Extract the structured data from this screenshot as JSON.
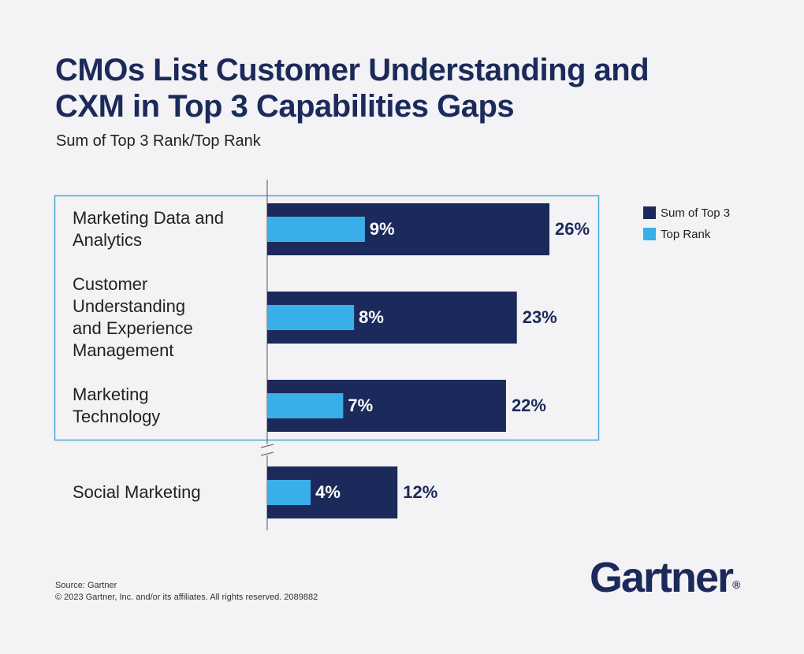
{
  "chart_data": {
    "type": "bar",
    "orientation": "horizontal",
    "title": "CMOs List Customer Understanding and CXM in Top 3 Capabilities Gaps",
    "subtitle": "Sum of Top 3 Rank/Top Rank",
    "categories": [
      "Marketing Data and Analytics",
      "Customer Understanding and Experience Management",
      "Marketing Technology",
      "Social Marketing"
    ],
    "series": [
      {
        "name": "Sum of Top 3",
        "color": "#1b2a5a",
        "values": [
          26,
          23,
          22,
          12
        ],
        "value_labels": [
          "26%",
          "23%",
          "22%",
          "12%"
        ]
      },
      {
        "name": "Top Rank",
        "color": "#3aaee8",
        "values": [
          9,
          8,
          7,
          4
        ],
        "value_labels": [
          "9%",
          "8%",
          "7%",
          "4%"
        ]
      }
    ],
    "source": "Source: Gartner",
    "copyright": "© 2023 Gartner, Inc. and/or its affiliates. All rights reserved. 2089882",
    "logo": "Gartner",
    "logo_mark": "®"
  }
}
